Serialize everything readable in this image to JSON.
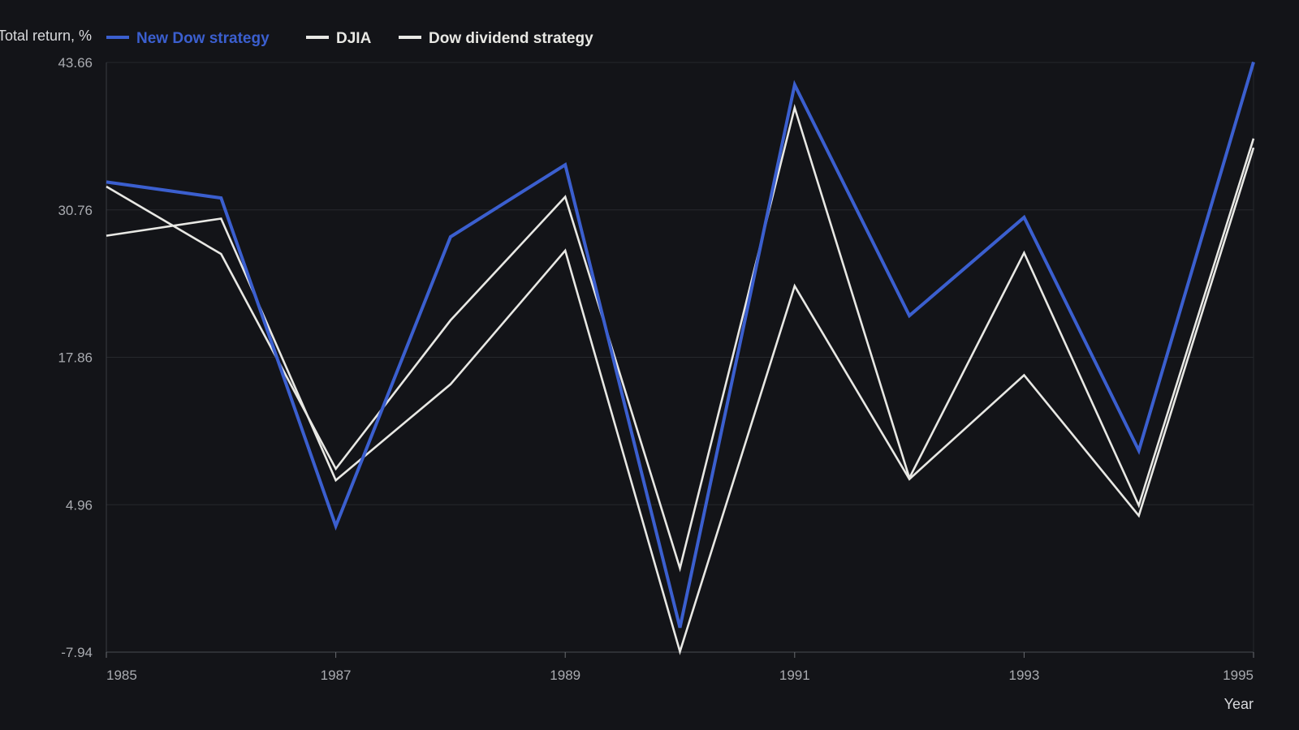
{
  "chart_data": {
    "type": "line",
    "ylabel": "Total return, %",
    "xlabel": "Year",
    "y_ticks": [
      "43.66",
      "30.76",
      "17.86",
      "4.96",
      "-7.94"
    ],
    "x_ticks": [
      "1985",
      "1987",
      "1989",
      "1991",
      "1993",
      "1995"
    ],
    "ylim": [
      -7.94,
      43.66
    ],
    "xlim": [
      1985,
      1995
    ],
    "grid": true,
    "legend_position": "top",
    "x": [
      1985,
      1986,
      1987,
      1988,
      1989,
      1990,
      1991,
      1992,
      1993,
      1994,
      1995
    ],
    "series": [
      {
        "name": "New Dow strategy",
        "color": "#3b5fcf",
        "values": [
          33.2,
          31.8,
          3.1,
          28.4,
          34.7,
          -5.8,
          41.7,
          21.5,
          30.1,
          9.7,
          43.7
        ]
      },
      {
        "name": "DJIA",
        "color": "#e8e8e4",
        "values": [
          32.8,
          26.9,
          8.1,
          21.1,
          31.9,
          -0.6,
          39.7,
          7.3,
          27.0,
          4.9,
          37.0
        ]
      },
      {
        "name": "Dow dividend strategy",
        "color": "#e8e8e4",
        "values": [
          28.5,
          30.0,
          7.1,
          15.5,
          27.2,
          -7.9,
          24.1,
          7.2,
          16.3,
          4.0,
          36.2
        ]
      }
    ]
  }
}
